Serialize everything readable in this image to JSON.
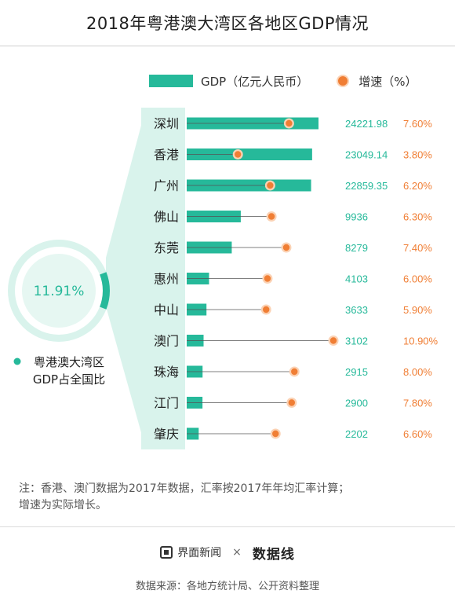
{
  "title": "2018年粤港澳大湾区各地区GDP情况",
  "legend": {
    "gdp_label": "GDP（亿元人民币）",
    "growth_label": "增速（%）"
  },
  "colors": {
    "bar": "#26b99a",
    "dot": "#f07e34",
    "growth_text": "#f07e34",
    "value_text": "#26b99a",
    "ring_track": "#d9f3ec",
    "ring_inner": "#e6f7f2"
  },
  "share": {
    "value": 11.91,
    "label": "11.91%",
    "caption_line1": "粤港澳大湾区",
    "caption_line2": "GDP占全国比"
  },
  "chart_data": {
    "type": "bar",
    "orientation": "horizontal",
    "title": "2018年粤港澳大湾区各地区GDP情况",
    "categories": [
      "深圳",
      "香港",
      "广州",
      "佛山",
      "东莞",
      "惠州",
      "中山",
      "澳门",
      "珠海",
      "江门",
      "肇庆"
    ],
    "series": [
      {
        "name": "GDP（亿元人民币）",
        "values": [
          24221.98,
          23049.14,
          22859.35,
          9936,
          8279,
          4103,
          3633,
          3102,
          2915,
          2900,
          2202
        ],
        "labels": [
          "24221.98",
          "23049.14",
          "22859.35",
          "9936",
          "8279",
          "4103",
          "3633",
          "3102",
          "2915",
          "2900",
          "2202"
        ]
      },
      {
        "name": "增速（%）",
        "values": [
          7.6,
          3.8,
          6.2,
          6.3,
          7.4,
          6.0,
          5.9,
          10.9,
          8.0,
          7.8,
          6.6
        ],
        "labels": [
          "7.60%",
          "3.80%",
          "6.20%",
          "6.30%",
          "7.40%",
          "6.00%",
          "5.90%",
          "10.90%",
          "8.00%",
          "7.80%",
          "6.60%"
        ]
      }
    ],
    "gdp_axis_max": 24221.98,
    "growth_axis_range": [
      0,
      10.9
    ],
    "grid": false,
    "legend_position": "top"
  },
  "note": {
    "line1": "注：香港、澳门数据为2017年数据，汇率按2017年年均汇率计算；",
    "line2": "增速为实际增长。"
  },
  "footer": {
    "brand1": "界面新闻",
    "times": "×",
    "brand2": "数据线",
    "source": "数据来源：各地方统计局、公开资料整理"
  }
}
